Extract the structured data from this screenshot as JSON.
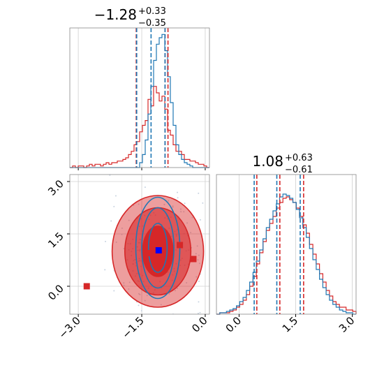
{
  "chart_data": {
    "type": "corner",
    "colors": {
      "red": "#d62728",
      "blue": "#1f77b4",
      "marker_blue": "#0000ff",
      "grid": "#d0d0d0",
      "scatter": "#c8d3e0"
    },
    "panels": [
      {
        "id": "hist-x",
        "type": "histogram",
        "title": {
          "base": "−1.28",
          "sup": "+0.33",
          "sub": "−0.35"
        },
        "xlim": [
          -3.2,
          0.1
        ],
        "red_quantiles": [
          -1.63,
          -0.95,
          -0.88
        ],
        "blue_quantiles": [
          -1.62,
          -1.28,
          -0.95
        ],
        "red_counts": [
          0,
          1,
          0,
          1,
          1,
          0,
          1,
          2,
          1,
          2,
          2,
          1,
          2,
          3,
          2,
          3,
          3,
          4,
          4,
          5,
          6,
          8,
          10,
          14,
          16,
          22,
          26,
          29,
          42,
          38,
          50,
          46,
          41,
          44,
          36,
          23,
          20,
          14,
          10,
          10,
          8,
          5,
          5,
          4,
          4,
          3,
          2,
          2,
          1,
          0
        ],
        "blue_counts": [
          0,
          0,
          0,
          0,
          0,
          0,
          0,
          0,
          0,
          0,
          0,
          0,
          0,
          0,
          0,
          0,
          0,
          0,
          0,
          0,
          0,
          0,
          0,
          0,
          0,
          3,
          8,
          17,
          33,
          50,
          66,
          76,
          80,
          82,
          72,
          56,
          40,
          26,
          14,
          8,
          5,
          3,
          2,
          1,
          0,
          0,
          0,
          0,
          0,
          0
        ]
      },
      {
        "id": "hist-y",
        "type": "histogram",
        "title": {
          "base": "1.08",
          "sup": "+0.63",
          "sub": "−0.61"
        },
        "xlim": [
          -0.6,
          3.1
        ],
        "xticks": [
          0.0,
          1.5,
          3.0
        ],
        "xticklabels": [
          "0.0",
          "1.5",
          "3.0"
        ],
        "red_quantiles": [
          0.47,
          1.08,
          1.71
        ],
        "blue_quantiles": [
          0.4,
          1.0,
          1.62
        ],
        "red_counts": [
          0,
          1,
          1,
          1,
          2,
          3,
          5,
          7,
          10,
          14,
          20,
          27,
          36,
          44,
          52,
          60,
          65,
          70,
          76,
          80,
          83,
          84,
          82,
          80,
          76,
          70,
          64,
          58,
          50,
          43,
          36,
          29,
          23,
          17,
          13,
          9,
          7,
          5,
          5,
          3,
          3,
          2
        ],
        "blue_counts": [
          0,
          1,
          1,
          2,
          3,
          4,
          6,
          9,
          12,
          17,
          23,
          30,
          38,
          46,
          54,
          62,
          68,
          74,
          79,
          84,
          86,
          85,
          83,
          80,
          75,
          69,
          62,
          55,
          47,
          39,
          32,
          25,
          19,
          14,
          10,
          7,
          5,
          3,
          2,
          1,
          1,
          0
        ]
      },
      {
        "id": "joint",
        "type": "contour-scatter",
        "xlim": [
          -3.2,
          0.1
        ],
        "ylim": [
          -0.8,
          3.2
        ],
        "xticks": [
          -3.0,
          -1.5,
          0.0
        ],
        "xticklabels": [
          "−3.0",
          "−1.5",
          "0.0"
        ],
        "yticks": [
          0.0,
          1.5,
          3.0
        ],
        "yticklabels": [
          "0.0",
          "1.5",
          "3.0"
        ],
        "red_center": [
          -1.12,
          1.0
        ],
        "red_levels": [
          [
            0.36,
            0.72
          ],
          [
            0.78,
            1.25
          ],
          [
            1.08,
            1.6
          ]
        ],
        "blue_center": [
          -1.12,
          1.1
        ],
        "blue_levels": [
          [
            0.22,
            0.7
          ],
          [
            0.38,
            1.15
          ],
          [
            0.52,
            1.45
          ]
        ],
        "red_points": [
          [
            -2.8,
            0.0
          ],
          [
            -1.2,
            1.15
          ],
          [
            -1.35,
            0.95
          ],
          [
            -0.6,
            1.18
          ],
          [
            -0.28,
            0.78
          ]
        ],
        "blue_points": [
          [
            -1.1,
            1.03
          ]
        ]
      }
    ]
  }
}
